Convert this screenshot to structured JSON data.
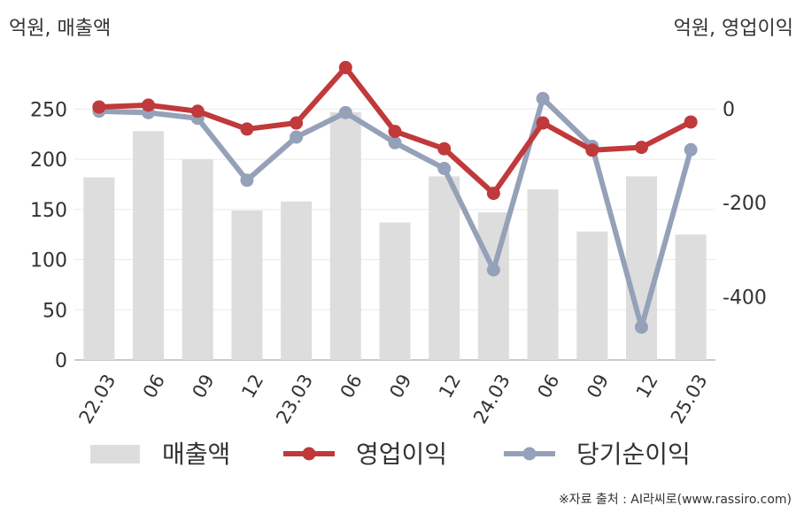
{
  "units": {
    "left": "억원, 매출액",
    "right": "억원, 영업이익"
  },
  "source": "※자료 출처 : AI라씨로(www.rassiro.com)",
  "chart_data": {
    "type": "bar+line",
    "categories": [
      "22.03",
      "06",
      "09",
      "12",
      "23.03",
      "06",
      "09",
      "12",
      "24.03",
      "06",
      "09",
      "12",
      "25.03"
    ],
    "left_axis": {
      "ticks": [
        0,
        50,
        100,
        150,
        200,
        250
      ],
      "ylim": [
        0,
        290
      ]
    },
    "right_axis": {
      "ticks": [
        0,
        -200,
        -400
      ],
      "ylim": [
        -535,
        85
      ]
    },
    "grid": true,
    "legend_position": "bottom",
    "series": [
      {
        "name": "매출액",
        "type": "bar",
        "axis": "left",
        "color": "#dddddd",
        "values": [
          182,
          228,
          200,
          149,
          158,
          247,
          137,
          183,
          147,
          170,
          128,
          183,
          125
        ]
      },
      {
        "name": "영업이익",
        "type": "line",
        "axis": "right",
        "color": "#c0393b",
        "values": [
          4,
          8,
          -5,
          -43,
          -30,
          88,
          -48,
          -85,
          -180,
          -30,
          -88,
          -82,
          -28
        ]
      },
      {
        "name": "당기순이익",
        "type": "line",
        "axis": "right",
        "color": "#95a1b9",
        "values": [
          -5,
          -8,
          -20,
          -152,
          -60,
          -8,
          -72,
          -127,
          -343,
          22,
          -80,
          -465,
          -87
        ]
      }
    ]
  }
}
